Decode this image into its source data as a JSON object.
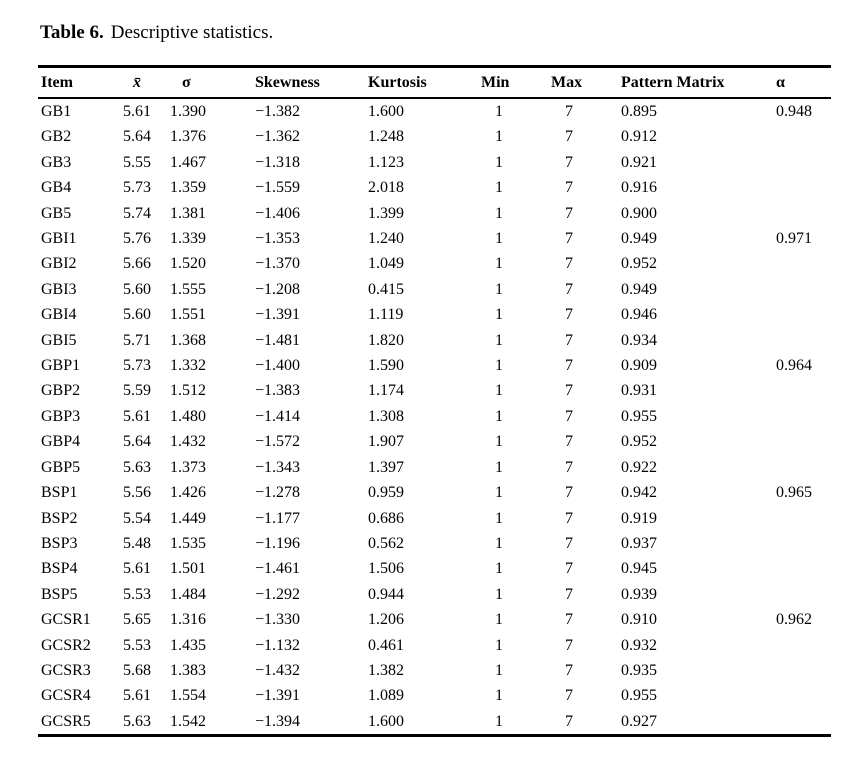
{
  "caption": {
    "label": "Table 6.",
    "text": "Descriptive statistics."
  },
  "colors": {
    "background": "#ffffff",
    "text": "#000000",
    "rule": "#000000"
  },
  "chart_data": {
    "type": "table",
    "title": "Table 6. Descriptive statistics.",
    "columns": [
      {
        "label": "Item"
      },
      {
        "label": "x̄",
        "style": "italic"
      },
      {
        "label": "σ"
      },
      {
        "label": "Skewness"
      },
      {
        "label": "Kurtosis"
      },
      {
        "label": "Min"
      },
      {
        "label": "Max"
      },
      {
        "label": "Pattern Matrix"
      },
      {
        "label": "α"
      }
    ],
    "rows": [
      [
        "GB1",
        "5.61",
        "1.390",
        "−1.382",
        "1.600",
        "1",
        "7",
        "0.895",
        "0.948"
      ],
      [
        "GB2",
        "5.64",
        "1.376",
        "−1.362",
        "1.248",
        "1",
        "7",
        "0.912",
        ""
      ],
      [
        "GB3",
        "5.55",
        "1.467",
        "−1.318",
        "1.123",
        "1",
        "7",
        "0.921",
        ""
      ],
      [
        "GB4",
        "5.73",
        "1.359",
        "−1.559",
        "2.018",
        "1",
        "7",
        "0.916",
        ""
      ],
      [
        "GB5",
        "5.74",
        "1.381",
        "−1.406",
        "1.399",
        "1",
        "7",
        "0.900",
        ""
      ],
      [
        "GBI1",
        "5.76",
        "1.339",
        "−1.353",
        "1.240",
        "1",
        "7",
        "0.949",
        "0.971"
      ],
      [
        "GBI2",
        "5.66",
        "1.520",
        "−1.370",
        "1.049",
        "1",
        "7",
        "0.952",
        ""
      ],
      [
        "GBI3",
        "5.60",
        "1.555",
        "−1.208",
        "0.415",
        "1",
        "7",
        "0.949",
        ""
      ],
      [
        "GBI4",
        "5.60",
        "1.551",
        "−1.391",
        "1.119",
        "1",
        "7",
        "0.946",
        ""
      ],
      [
        "GBI5",
        "5.71",
        "1.368",
        "−1.481",
        "1.820",
        "1",
        "7",
        "0.934",
        ""
      ],
      [
        "GBP1",
        "5.73",
        "1.332",
        "−1.400",
        "1.590",
        "1",
        "7",
        "0.909",
        "0.964"
      ],
      [
        "GBP2",
        "5.59",
        "1.512",
        "−1.383",
        "1.174",
        "1",
        "7",
        "0.931",
        ""
      ],
      [
        "GBP3",
        "5.61",
        "1.480",
        "−1.414",
        "1.308",
        "1",
        "7",
        "0.955",
        ""
      ],
      [
        "GBP4",
        "5.64",
        "1.432",
        "−1.572",
        "1.907",
        "1",
        "7",
        "0.952",
        ""
      ],
      [
        "GBP5",
        "5.63",
        "1.373",
        "−1.343",
        "1.397",
        "1",
        "7",
        "0.922",
        ""
      ],
      [
        "BSP1",
        "5.56",
        "1.426",
        "−1.278",
        "0.959",
        "1",
        "7",
        "0.942",
        "0.965"
      ],
      [
        "BSP2",
        "5.54",
        "1.449",
        "−1.177",
        "0.686",
        "1",
        "7",
        "0.919",
        ""
      ],
      [
        "BSP3",
        "5.48",
        "1.535",
        "−1.196",
        "0.562",
        "1",
        "7",
        "0.937",
        ""
      ],
      [
        "BSP4",
        "5.61",
        "1.501",
        "−1.461",
        "1.506",
        "1",
        "7",
        "0.945",
        ""
      ],
      [
        "BSP5",
        "5.53",
        "1.484",
        "−1.292",
        "0.944",
        "1",
        "7",
        "0.939",
        ""
      ],
      [
        "GCSR1",
        "5.65",
        "1.316",
        "−1.330",
        "1.206",
        "1",
        "7",
        "0.910",
        "0.962"
      ],
      [
        "GCSR2",
        "5.53",
        "1.435",
        "−1.132",
        "0.461",
        "1",
        "7",
        "0.932",
        ""
      ],
      [
        "GCSR3",
        "5.68",
        "1.383",
        "−1.432",
        "1.382",
        "1",
        "7",
        "0.935",
        ""
      ],
      [
        "GCSR4",
        "5.61",
        "1.554",
        "−1.391",
        "1.089",
        "1",
        "7",
        "0.955",
        ""
      ],
      [
        "GCSR5",
        "5.63",
        "1.542",
        "−1.394",
        "1.600",
        "1",
        "7",
        "0.927",
        ""
      ]
    ]
  }
}
